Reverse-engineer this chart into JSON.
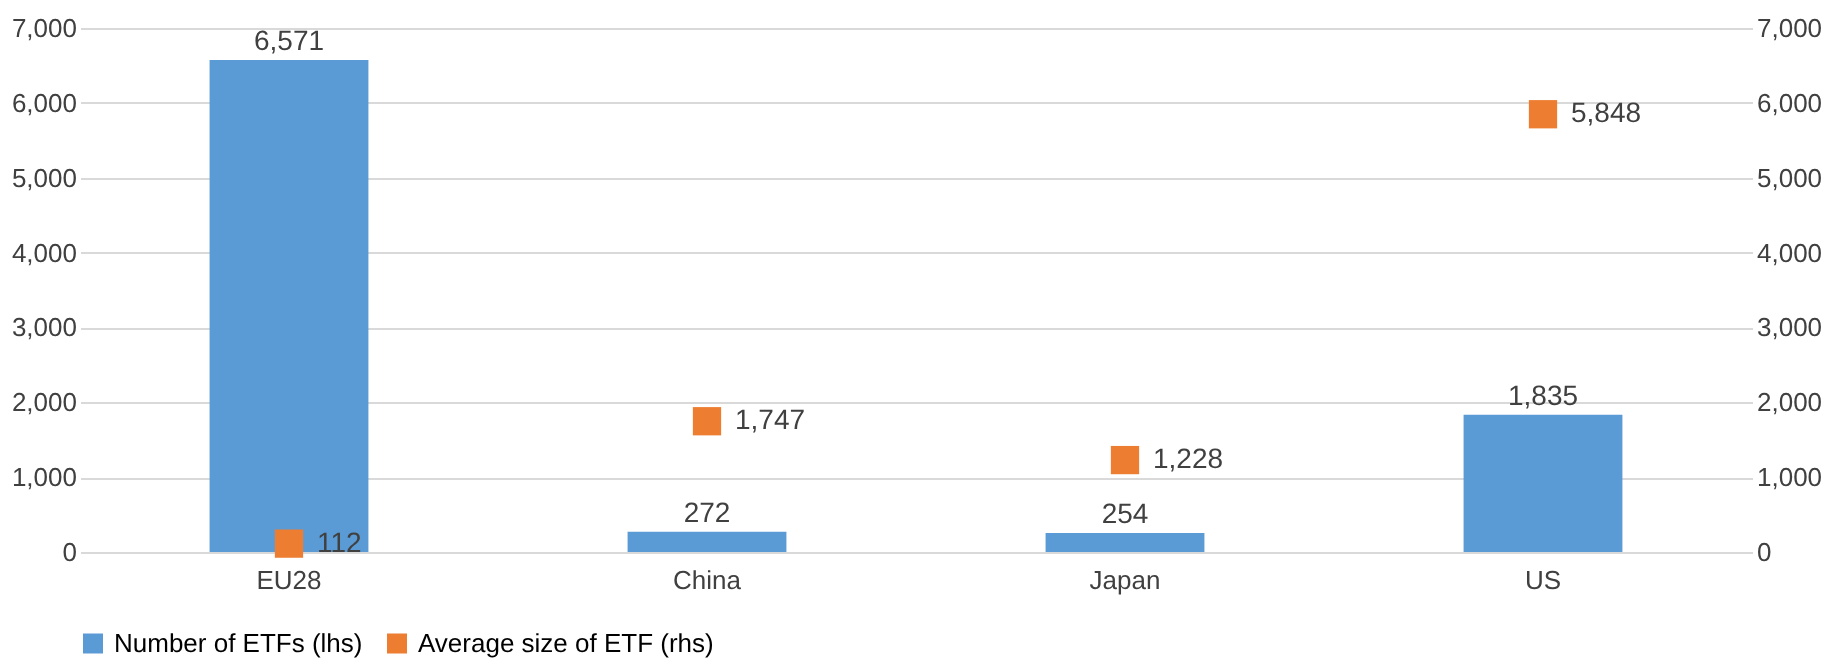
{
  "chart_data": {
    "type": "bar",
    "categories": [
      "EU28",
      "China",
      "Japan",
      "US"
    ],
    "series": [
      {
        "name": "Number of ETFs (lhs)",
        "color": "#5b9bd5",
        "values": [
          6571,
          272,
          254,
          1835
        ],
        "value_labels": [
          "6,571",
          "272",
          "254",
          "1,835"
        ]
      },
      {
        "name": "Average size of ETF (rhs)",
        "type": "scatter",
        "axis": "y2",
        "marker": "square",
        "color": "#ed7d31",
        "values": [
          112,
          1747,
          1228,
          5848
        ],
        "value_labels": [
          "112",
          "1,747",
          "1,228",
          "5,848"
        ]
      }
    ],
    "ylim": [
      0,
      7000
    ],
    "yticks": [
      0,
      {
        "value": 1000,
        "label": "1,000"
      },
      {
        "value": 2000,
        "label": "2,000"
      },
      {
        "value": 3000,
        "label": "3,000"
      },
      {
        "value": 4000,
        "label": "4,000"
      },
      {
        "value": 5000,
        "label": "5,000"
      },
      {
        "value": 6000,
        "label": "6,000"
      },
      {
        "value": 7000,
        "label": "7,000"
      }
    ],
    "y2lim": [
      0,
      7000
    ],
    "y2ticks": [
      0,
      {
        "value": 1000,
        "label": "1,000"
      },
      {
        "value": 2000,
        "label": "2,000"
      },
      {
        "value": 3000,
        "label": "3,000"
      },
      {
        "value": 4000,
        "label": "4,000"
      },
      {
        "value": 5000,
        "label": "5,000"
      },
      {
        "value": 6000,
        "label": "6,000"
      },
      {
        "value": 7000,
        "label": "7,000"
      }
    ],
    "grid": "y",
    "legend": "bottom"
  }
}
